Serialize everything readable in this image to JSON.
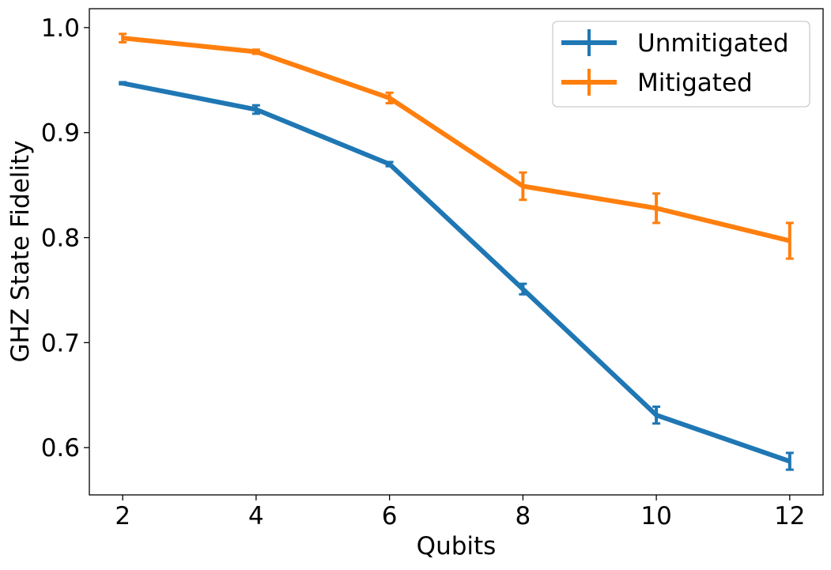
{
  "chart_data": {
    "type": "line",
    "title": "",
    "xlabel": "Qubits",
    "ylabel": "GHZ State Fidelity",
    "x": [
      2,
      4,
      6,
      8,
      10,
      12
    ],
    "xlim": [
      1.5,
      12.5
    ],
    "ylim": [
      0.555,
      1.018
    ],
    "xticks": [
      2,
      4,
      6,
      8,
      10,
      12
    ],
    "yticks": [
      0.6,
      0.7,
      0.8,
      0.9,
      1.0
    ],
    "xtick_labels": [
      "2",
      "4",
      "6",
      "8",
      "10",
      "12"
    ],
    "ytick_labels": [
      "0.6",
      "0.7",
      "0.8",
      "0.9",
      "1.0"
    ],
    "grid": false,
    "legend_position": "top-right",
    "series": [
      {
        "name": "Unmitigated",
        "color": "#1f77b4",
        "values": [
          0.947,
          0.922,
          0.87,
          0.751,
          0.631,
          0.587
        ],
        "errors": [
          0.001,
          0.004,
          0.002,
          0.005,
          0.008,
          0.008
        ]
      },
      {
        "name": "Mitigated",
        "color": "#ff7f0e",
        "values": [
          0.99,
          0.977,
          0.933,
          0.849,
          0.828,
          0.797
        ],
        "errors": [
          0.004,
          0.002,
          0.005,
          0.013,
          0.014,
          0.017
        ]
      }
    ]
  }
}
